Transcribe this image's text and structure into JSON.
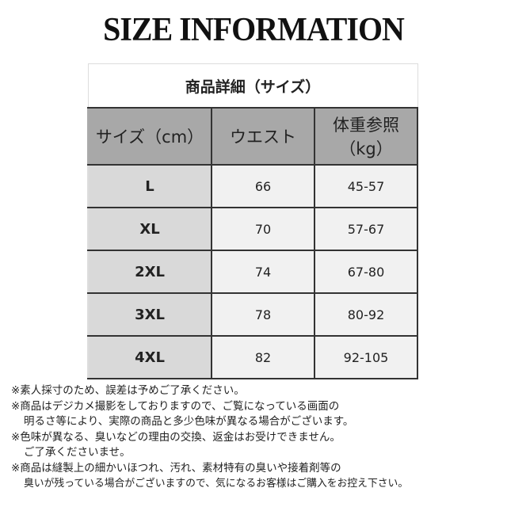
{
  "title": "SIZE INFORMATION",
  "table": {
    "caption": "商品詳細（サイズ）",
    "headers": [
      "サイズ（cm）",
      "ウエスト",
      "体重参照\n（kg）"
    ],
    "header_weight_line1": "体重参照",
    "header_weight_line2": "（kg）",
    "rows": [
      {
        "size": "L",
        "waist": "66",
        "weight": "45-57"
      },
      {
        "size": "XL",
        "waist": "70",
        "weight": "57-67"
      },
      {
        "size": "2XL",
        "waist": "74",
        "weight": "67-80"
      },
      {
        "size": "3XL",
        "waist": "78",
        "weight": "80-92"
      },
      {
        "size": "4XL",
        "waist": "82",
        "weight": "92-105"
      }
    ]
  },
  "notes": [
    "※素人採寸のため、誤差は予めご了承ください。",
    "※商品はデジカメ撮影をしておりますので、ご覧になっている画面の",
    "明るさ等により、実際の商品と多少色味が異なる場合がございます。",
    "※色味が異なる、臭いなどの理由の交換、返金はお受けできません。",
    "ご了承くださいませ。",
    "※商品は縫製上の細かいほつれ、汚れ、素材特有の臭いや接着剤等の",
    "臭いが残っている場合がございますので、気になるお客様はご購入をお控え下さい。"
  ]
}
